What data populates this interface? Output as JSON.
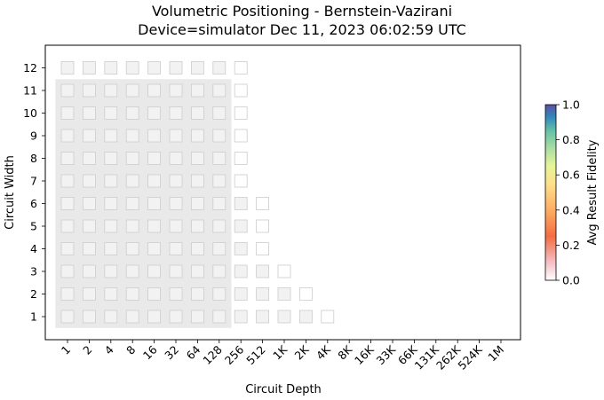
{
  "chart_data": {
    "type": "heatmap",
    "title": "Volumetric Positioning - Bernstein-Vazirani",
    "subtitle": "Device=simulator  Dec 11, 2023 06:02:59 UTC",
    "xlabel": "Circuit Depth",
    "ylabel": "Circuit Width",
    "x_ticks": [
      "1",
      "2",
      "4",
      "8",
      "16",
      "32",
      "64",
      "128",
      "256",
      "512",
      "1K",
      "2K",
      "4K",
      "8K",
      "16K",
      "33K",
      "66K",
      "131K",
      "262K",
      "524K",
      "1M"
    ],
    "y_ticks": [
      "1",
      "2",
      "3",
      "4",
      "5",
      "6",
      "7",
      "8",
      "9",
      "10",
      "11",
      "12"
    ],
    "grid": false,
    "colorbar": {
      "label": "Avg Result Fidelity",
      "range": [
        0.0,
        1.0
      ],
      "ticks": [
        "0.0",
        "0.2",
        "0.4",
        "0.6",
        "0.8",
        "1.0"
      ],
      "colormap": "spectral"
    },
    "shaded_region": {
      "description": "measured volume",
      "depth_range": [
        "1",
        "128"
      ],
      "width_range": [
        1,
        11
      ],
      "color": "#e9e9e9"
    },
    "cells": [
      {
        "width": 1,
        "max_depth_index": 12
      },
      {
        "width": 2,
        "max_depth_index": 11
      },
      {
        "width": 3,
        "max_depth_index": 10
      },
      {
        "width": 4,
        "max_depth_index": 9
      },
      {
        "width": 5,
        "max_depth_index": 9
      },
      {
        "width": 6,
        "max_depth_index": 9
      },
      {
        "width": 7,
        "max_depth_index": 8
      },
      {
        "width": 8,
        "max_depth_index": 8
      },
      {
        "width": 9,
        "max_depth_index": 8
      },
      {
        "width": 10,
        "max_depth_index": 8
      },
      {
        "width": 11,
        "max_depth_index": 8
      },
      {
        "width": 12,
        "max_depth_index": 8
      }
    ],
    "cell_colors": {
      "filled": "#f2f2f2",
      "empty": "#ffffff",
      "edge": "#cccccc"
    }
  }
}
